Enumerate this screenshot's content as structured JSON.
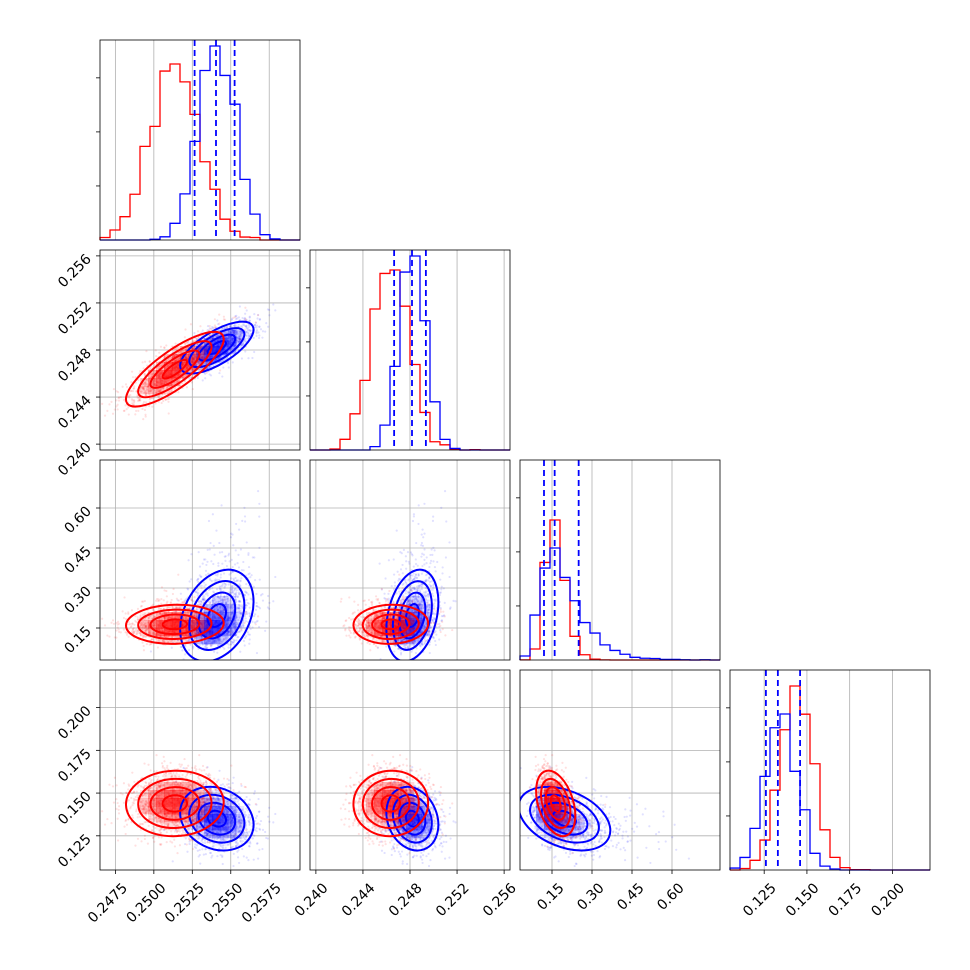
{
  "colors": {
    "series_a": "#ff0000",
    "series_b": "#0000ff",
    "grid": "#b0b0b0",
    "frame": "#000000"
  },
  "chart_data": {
    "type": "corner",
    "title": "",
    "grid": true,
    "parameters": [
      {
        "range": [
          0.2465,
          0.2595
        ],
        "ticks": [
          0.2475,
          0.25,
          0.2525,
          0.255,
          0.2575
        ],
        "tick_labels": [
          "0.2475",
          "0.2500",
          "0.2525",
          "0.2550",
          "0.2575"
        ]
      },
      {
        "range": [
          0.2395,
          0.2565
        ],
        "ticks": [
          0.24,
          0.244,
          0.248,
          0.252,
          0.256
        ],
        "tick_labels": [
          "0.240",
          "0.244",
          "0.248",
          "0.252",
          "0.256"
        ]
      },
      {
        "range": [
          0.03,
          0.78
        ],
        "ticks": [
          0.15,
          0.3,
          0.45,
          0.6
        ],
        "tick_labels": [
          "0.15",
          "0.30",
          "0.45",
          "0.60"
        ]
      },
      {
        "range": [
          0.105,
          0.222
        ],
        "ticks": [
          0.125,
          0.15,
          0.175,
          0.2
        ],
        "tick_labels": [
          "0.125",
          "0.150",
          "0.175",
          "0.200"
        ]
      }
    ],
    "series": [
      {
        "color": "#ff0000",
        "mean": [
          0.2514,
          0.2464,
          0.16,
          0.144
        ],
        "sd": [
          0.0016,
          0.0016,
          0.035,
          0.0095
        ],
        "corr": [
          [
            1,
            0.8,
            0.05,
            0.0
          ],
          [
            0.8,
            1,
            0.05,
            0.0
          ],
          [
            0.05,
            0.05,
            1,
            -0.35
          ],
          [
            0.0,
            0.0,
            -0.35,
            1
          ]
        ],
        "hist_max_frac": [
          0.88,
          0.9,
          0.7,
          0.92
        ],
        "quantiles": []
      },
      {
        "color": "#0000ff",
        "mean": [
          0.2541,
          0.2482,
          0.18,
          0.135
        ],
        "sd": [
          0.0012,
          0.0011,
          0.08,
          0.0095
        ],
        "corr": [
          [
            1,
            0.7,
            0.3,
            -0.2
          ],
          [
            0.7,
            1,
            0.3,
            -0.2
          ],
          [
            0.3,
            0.3,
            1,
            -0.4
          ],
          [
            -0.2,
            -0.2,
            -0.4,
            1
          ]
        ],
        "hist_max_frac": [
          0.97,
          0.97,
          0.56,
          0.78
        ],
        "quantiles": [
          [
            0.25265,
            0.25404,
            0.25525
          ],
          [
            0.24665,
            0.24817,
            0.24935
          ],
          [
            0.12,
            0.16,
            0.25
          ],
          [
            0.126,
            0.133,
            0.146
          ]
        ]
      }
    ]
  }
}
